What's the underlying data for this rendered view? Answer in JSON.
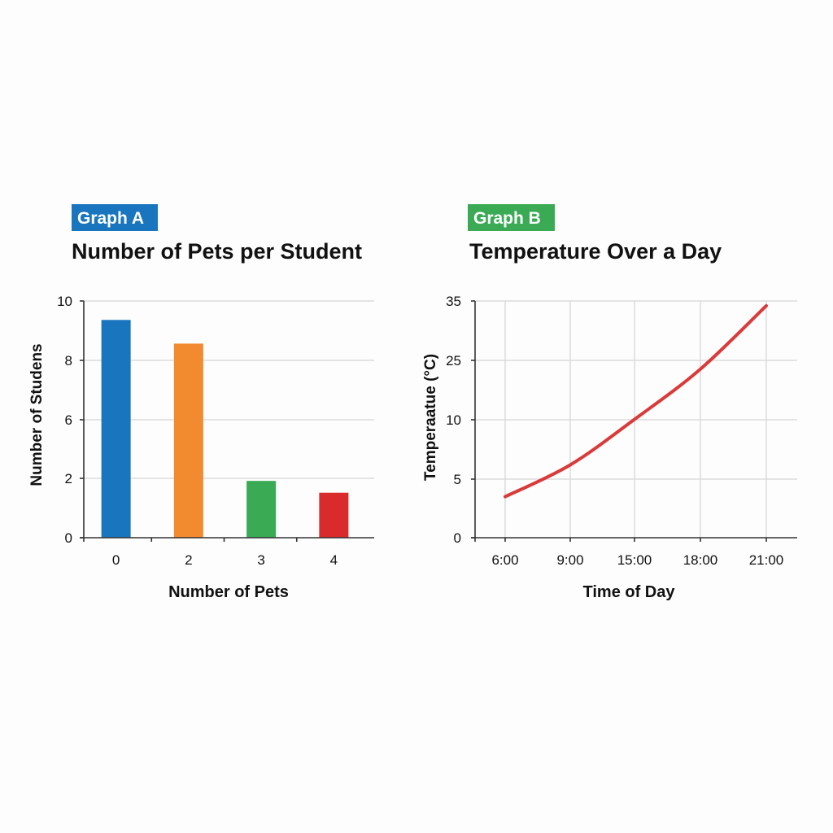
{
  "chart_data": [
    {
      "type": "bar",
      "badge": "Graph A",
      "badge_color": "#1a75bf",
      "title": "Number of Pets per Student",
      "xlabel": "Number of Pets",
      "ylabel": "Number of Studens",
      "categories": [
        "0",
        "2",
        "3",
        "4"
      ],
      "values": [
        9.2,
        8.2,
        2.4,
        1.9
      ],
      "colors": [
        "#1a75bf",
        "#f28a30",
        "#3aaa55",
        "#d92b2b"
      ],
      "yticks": [
        "0",
        "2",
        "6",
        "8",
        "10"
      ],
      "grid": true
    },
    {
      "type": "line",
      "badge": "Graph B",
      "badge_color": "#3aaa55",
      "title": "Temperature Over a Day",
      "xlabel": "Time of Day",
      "ylabel": "Temperaatue (°C)",
      "x": [
        "6:00",
        "9:00",
        "15:00",
        "18:00",
        "21:00"
      ],
      "yticks": [
        "0",
        "5",
        "10",
        "25",
        "35"
      ],
      "series": [
        {
          "color": "#d93a3a",
          "points": [
            {
              "x": "6:00",
              "y": 3.5
            },
            {
              "x": "9:00",
              "y": 6.2
            },
            {
              "x": "15:00",
              "y": 10.1
            },
            {
              "x": "18:00",
              "y": 22.8
            },
            {
              "x": "21:00",
              "y": 34.2
            }
          ]
        }
      ],
      "grid": true
    }
  ]
}
